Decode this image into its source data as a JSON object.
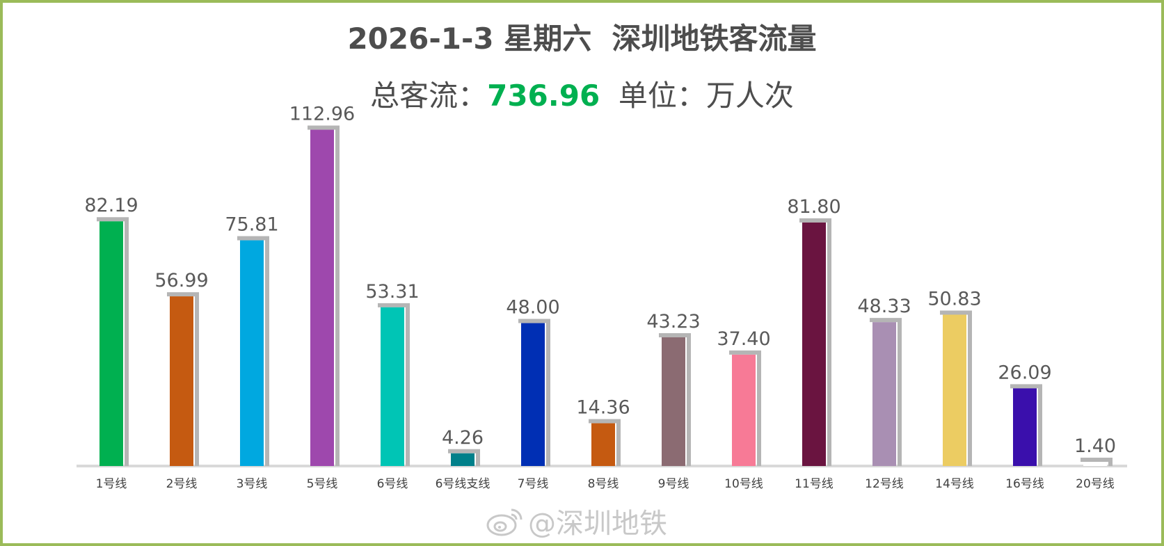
{
  "chart_data": {
    "type": "bar",
    "title": "2026-1-3 星期六  深圳地铁客流量",
    "subtitle_prefix": "总客流：",
    "total_value": "736.96",
    "unit_text": "单位：万人次",
    "categories": [
      "1号线",
      "2号线",
      "3号线",
      "5号线",
      "6号线",
      "6号线支线",
      "7号线",
      "8号线",
      "9号线",
      "10号线",
      "11号线",
      "12号线",
      "14号线",
      "16号线",
      "20号线"
    ],
    "values": [
      82.19,
      56.99,
      75.81,
      112.96,
      53.31,
      4.26,
      48.0,
      14.36,
      43.23,
      37.4,
      81.8,
      48.33,
      50.83,
      26.09,
      1.4
    ],
    "value_labels": [
      "82.19",
      "56.99",
      "75.81",
      "112.96",
      "53.31",
      "4.26",
      "48.00",
      "14.36",
      "43.23",
      "37.40",
      "81.80",
      "48.33",
      "50.83",
      "26.09",
      "1.40"
    ],
    "colors": [
      "#00b050",
      "#c55a11",
      "#00a8e0",
      "#9e48ad",
      "#00c5b5",
      "#00808a",
      "#002fb4",
      "#c55a11",
      "#8b6b72",
      "#f77a96",
      "#6a1440",
      "#a98fb3",
      "#eccc62",
      "#3a0fac",
      "#ffffff"
    ],
    "shadow_color": "#b5b5b5",
    "axis_color": "#d9d9d9",
    "grid": false,
    "legend": "none"
  },
  "watermark": {
    "icon": "weibo-icon",
    "text": "@深圳地铁"
  },
  "frame_color": "#9bbb59"
}
